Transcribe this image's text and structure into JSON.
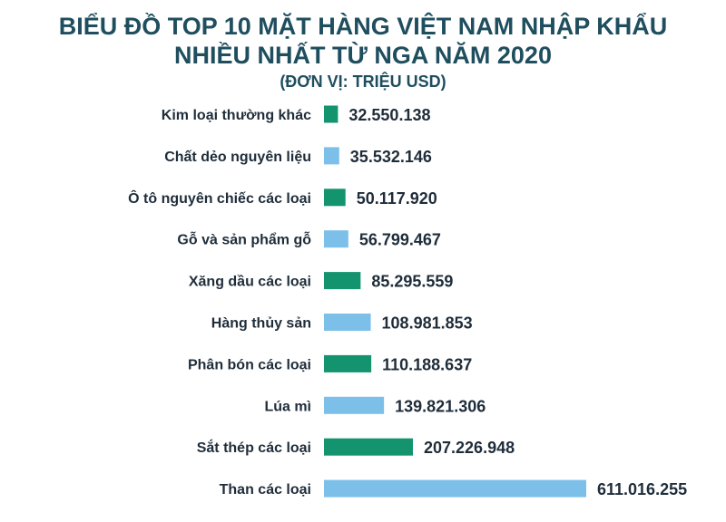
{
  "title_line1": "BIỂU ĐỒ TOP 10 MẶT HÀNG VIỆT NAM NHẬP KHẨU",
  "title_line2": "NHIỀU NHẤT TỪ NGA NĂM 2020",
  "subtitle": "(ĐƠN VỊ: TRIỆU USD)",
  "colors": {
    "green": "#13936e",
    "blue": "#7cc0ea",
    "title": "#1f4e5f",
    "text": "#1f2d3a"
  },
  "chart_data": {
    "type": "bar",
    "orientation": "horizontal",
    "title": "BIỂU ĐỒ TOP 10 MẶT HÀNG VIỆT NAM NHẬP KHẨU NHIỀU NHẤT TỪ NGA NĂM 2020",
    "subtitle": "(ĐƠN VỊ: TRIỆU USD)",
    "xlabel": "",
    "ylabel": "",
    "grid": false,
    "categories": [
      "Kim loại thường khác",
      "Chất dẻo nguyên liệu",
      "Ô tô nguyên chiếc các loại",
      "Gỗ và sản phẩm gỗ",
      "Xăng dầu các loại",
      "Hàng thủy sản",
      "Phân bón các loại",
      "Lúa mì",
      "Sắt thép các loại",
      "Than các loại"
    ],
    "values": [
      32550138,
      35532146,
      50117920,
      56799467,
      85295559,
      108981853,
      110188637,
      139821306,
      207226948,
      611016255
    ],
    "value_labels": [
      "32.550.138",
      "35.532.146",
      "50.117.920",
      "56.799.467",
      "85.295.559",
      "108.981.853",
      "110.188.637",
      "139.821.306",
      "207.226.948",
      "611.016.255"
    ],
    "bar_colors": [
      "#13936e",
      "#7cc0ea",
      "#13936e",
      "#7cc0ea",
      "#13936e",
      "#7cc0ea",
      "#13936e",
      "#7cc0ea",
      "#13936e",
      "#7cc0ea"
    ]
  }
}
